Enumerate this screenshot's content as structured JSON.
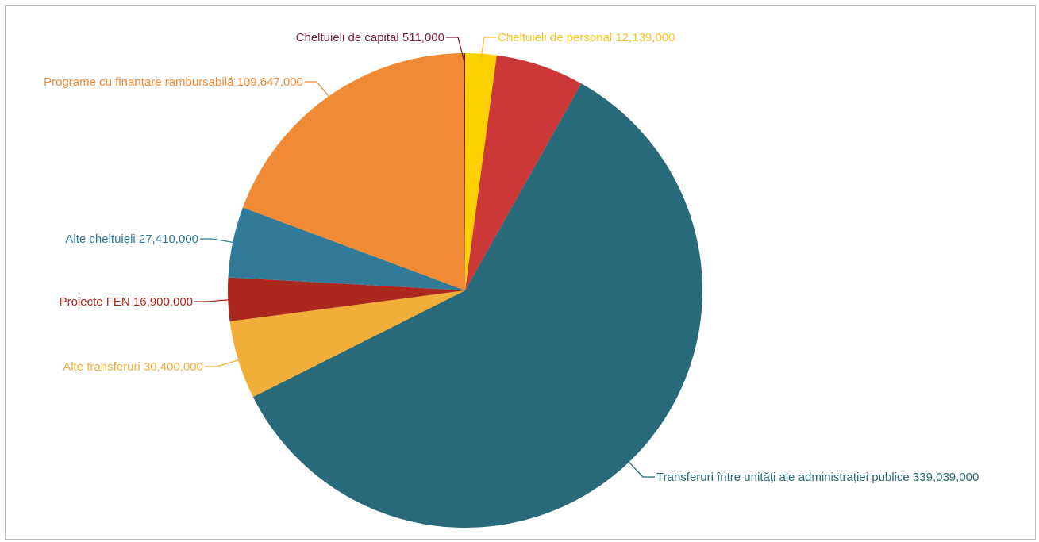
{
  "chart_data": {
    "type": "pie",
    "title": "",
    "slices": [
      {
        "label": "Cheltuieli de personal",
        "value": 12139000,
        "value_text": "12,139,000",
        "color": "#fdd000",
        "label_color": "#f9c31c"
      },
      {
        "label": "",
        "value": 34300000,
        "value_text": "",
        "color": "#cc3837",
        "label_color": "#cc3837"
      },
      {
        "label": "Transferuri între unități ale administrației publice",
        "value": 339039000,
        "value_text": "339,039,000",
        "color": "#286a79",
        "label_color": "#286a79"
      },
      {
        "label": "Alte transferuri",
        "value": 30400000,
        "value_text": "30,400,000",
        "color": "#f1ae38",
        "label_color": "#f1ae38"
      },
      {
        "label": "Proiecte FEN",
        "value": 16900000,
        "value_text": "16,900,000",
        "color": "#ac281e",
        "label_color": "#ac281e"
      },
      {
        "label": "Alte cheltuieli",
        "value": 27410000,
        "value_text": "27,410,000",
        "color": "#317b99",
        "label_color": "#317b99"
      },
      {
        "label": "Programe cu finanțare rambursabilă",
        "value": 109647000,
        "value_text": "109,647,000",
        "color": "#f08a35",
        "label_color": "#f08a35"
      },
      {
        "label": "Cheltuieli de capital",
        "value": 511000,
        "value_text": "511,000",
        "color": "#7b1f3a",
        "label_color": "#7b1f3a"
      }
    ]
  }
}
